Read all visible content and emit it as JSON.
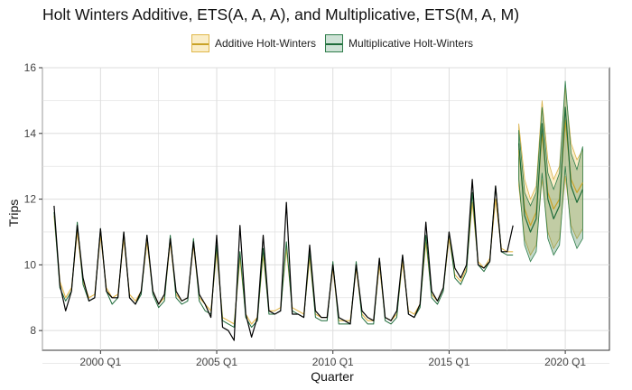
{
  "chart_data": {
    "type": "line",
    "title": "Holt Winters Additive, ETS(A, A, A), and Multiplicative, ETS(M, A, M)",
    "xlabel": "Quarter",
    "ylabel": "Trips",
    "xlim": [
      1997.5,
      2021.9
    ],
    "ylim": [
      7.4,
      16.0
    ],
    "x_ticks": [
      2000,
      2005,
      2010,
      2015,
      2020
    ],
    "x_tick_labels": [
      "2000 Q1",
      "2005 Q1",
      "2010 Q1",
      "2015 Q1",
      "2020 Q1"
    ],
    "y_ticks": [
      8,
      10,
      12,
      14,
      16
    ],
    "y_tick_labels": [
      "8",
      "10",
      "12",
      "14",
      "16"
    ],
    "grid": true,
    "legend_position": "top",
    "start_year": 1998,
    "actual": [
      11.8,
      9.4,
      8.6,
      9.2,
      11.2,
      9.6,
      8.9,
      9.0,
      11.1,
      9.2,
      9.0,
      9.0,
      11.0,
      9.0,
      8.8,
      9.2,
      10.9,
      9.2,
      8.8,
      9.1,
      10.8,
      9.2,
      8.9,
      9.0,
      10.7,
      9.1,
      8.8,
      8.4,
      10.9,
      8.1,
      8.0,
      7.7,
      11.2,
      8.5,
      7.8,
      8.4,
      10.9,
      8.6,
      8.5,
      8.6,
      11.9,
      8.5,
      8.5,
      8.4,
      10.6,
      8.6,
      8.4,
      8.4,
      10.0,
      8.4,
      8.3,
      8.2,
      10.0,
      8.6,
      8.4,
      8.3,
      10.2,
      8.4,
      8.3,
      8.6,
      10.3,
      8.5,
      8.4,
      8.8,
      11.3,
      9.2,
      8.9,
      9.3,
      11.0,
      9.9,
      9.6,
      10.0,
      12.6,
      10.0,
      9.9,
      10.1,
      12.4,
      10.4,
      10.4,
      11.2
    ],
    "series": [
      {
        "name": "Additive Holt-Winters",
        "color": "#c9a227",
        "fitted": [
          11.5,
          9.5,
          9.0,
          9.3,
          11.0,
          9.5,
          9.0,
          9.1,
          10.9,
          9.3,
          9.0,
          9.1,
          10.8,
          9.1,
          8.9,
          9.2,
          10.7,
          9.2,
          8.8,
          9.0,
          10.7,
          9.1,
          8.9,
          9.0,
          10.6,
          9.0,
          8.8,
          8.6,
          10.4,
          8.4,
          8.3,
          8.2,
          10.2,
          8.5,
          8.2,
          8.4,
          10.3,
          8.6,
          8.6,
          8.7,
          10.5,
          8.7,
          8.6,
          8.5,
          10.2,
          8.5,
          8.4,
          8.4,
          9.9,
          8.3,
          8.3,
          8.3,
          9.9,
          8.5,
          8.3,
          8.3,
          10.0,
          8.4,
          8.3,
          8.5,
          10.1,
          8.6,
          8.5,
          8.8,
          10.7,
          9.1,
          8.9,
          9.3,
          10.8,
          9.7,
          9.5,
          9.9,
          11.9,
          10.1,
          9.9,
          10.2,
          12.0,
          10.5,
          10.4,
          10.4
        ],
        "forecast": [
          13.5,
          11.7,
          11.2,
          11.6,
          14.0,
          12.2,
          11.7,
          12.0,
          14.4,
          12.6,
          12.2,
          12.5
        ],
        "forecast_lower": [
          12.4,
          10.8,
          10.3,
          10.6,
          12.6,
          11.0,
          10.5,
          10.8,
          12.7,
          11.2,
          10.8,
          11.1
        ],
        "forecast_upper": [
          14.3,
          12.6,
          12.0,
          12.4,
          15.0,
          13.2,
          12.6,
          13.0,
          15.4,
          13.7,
          13.2,
          13.5
        ]
      },
      {
        "name": "Multiplicative Holt-Winters",
        "color": "#1e6b3a",
        "fitted": [
          11.6,
          9.3,
          8.9,
          9.2,
          11.3,
          9.4,
          8.9,
          9.0,
          11.1,
          9.2,
          8.8,
          9.0,
          11.0,
          9.0,
          8.8,
          9.1,
          10.9,
          9.1,
          8.7,
          8.9,
          10.9,
          9.0,
          8.8,
          8.9,
          10.8,
          8.9,
          8.6,
          8.5,
          10.6,
          8.3,
          8.2,
          8.1,
          10.4,
          8.4,
          8.1,
          8.3,
          10.5,
          8.5,
          8.5,
          8.6,
          10.7,
          8.6,
          8.5,
          8.4,
          10.4,
          8.4,
          8.3,
          8.3,
          10.1,
          8.2,
          8.2,
          8.2,
          10.1,
          8.4,
          8.2,
          8.2,
          10.2,
          8.3,
          8.2,
          8.4,
          10.3,
          8.5,
          8.4,
          8.7,
          10.9,
          9.0,
          8.8,
          9.2,
          11.0,
          9.6,
          9.4,
          9.8,
          12.2,
          10.0,
          9.8,
          10.1,
          12.4,
          10.4,
          10.3,
          10.3
        ],
        "forecast": [
          13.7,
          11.5,
          11.0,
          11.4,
          14.3,
          12.0,
          11.4,
          11.8,
          14.8,
          12.4,
          11.9,
          12.3
        ],
        "forecast_lower": [
          12.6,
          10.6,
          10.1,
          10.4,
          12.8,
          10.8,
          10.3,
          10.6,
          13.0,
          11.0,
          10.5,
          10.8
        ],
        "forecast_upper": [
          14.1,
          12.2,
          11.8,
          12.2,
          14.8,
          12.8,
          12.3,
          12.8,
          15.6,
          13.4,
          12.9,
          13.6
        ]
      }
    ]
  }
}
